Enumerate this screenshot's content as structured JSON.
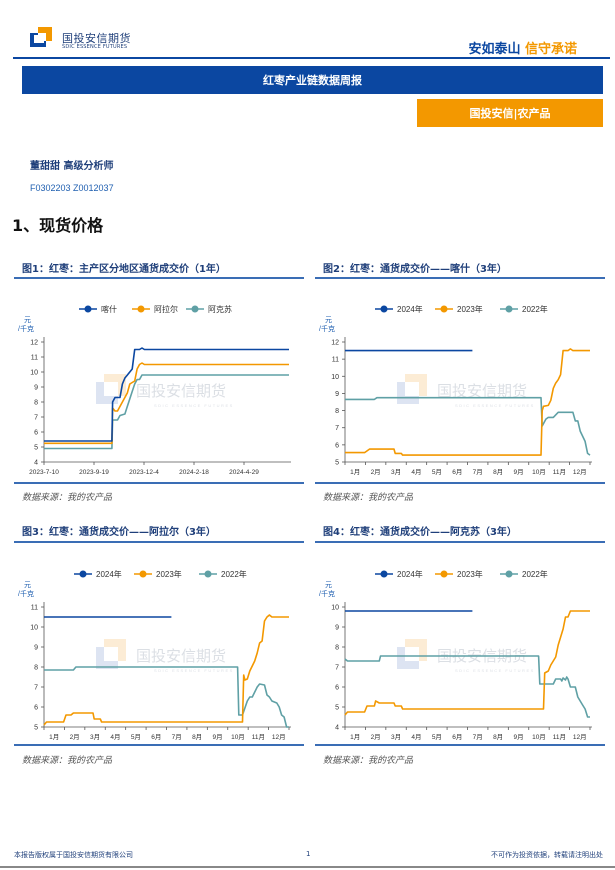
{
  "header": {
    "logo_cn": "国投安信期货",
    "logo_en": "SDIC ESSENCE FUTURES",
    "slogan_a": "安如泰山",
    "slogan_b": "信守承诺",
    "colors": {
      "brand_blue": "#0b47a1",
      "brand_orange": "#f39800"
    }
  },
  "report": {
    "title": "红枣产业链数据周报",
    "tag": "国投安信|农产品",
    "analyst": "董甜甜 高级分析师",
    "cert": "F0302203 Z0012037",
    "section": "1、现货价格"
  },
  "watermark": {
    "cn": "国投安信期货",
    "en": "SDIC ESSENCE FUTURES"
  },
  "figures": [
    {
      "title": "图1：红枣：主产区分地区通货成交价（1年）",
      "source": "数据来源：我的农产品"
    },
    {
      "title": "图2：红枣：通货成交价——喀什（3年）",
      "source": "数据来源：我的农产品"
    },
    {
      "title": "图3：红枣：通货成交价——阿拉尔（3年）",
      "source": "数据来源：我的农产品"
    },
    {
      "title": "图4：红枣：通货成交价——阿克苏（3年）",
      "source": "数据来源：我的农产品"
    }
  ],
  "footer": {
    "left": "本报告版权属于国投安信期货有限公司",
    "page": "1",
    "right": "不可作为投资依据，转载请注明出处"
  },
  "chart_data": [
    {
      "type": "line",
      "title": "图1：红枣：主产区分地区通货成交价（1年）",
      "ylabel": "元/千克",
      "ylim": [
        4,
        12
      ],
      "yticks": [
        4,
        5,
        6,
        7,
        8,
        9,
        10,
        11,
        12
      ],
      "xticks": [
        "2023-7-10",
        "2023-9-19",
        "2023-12-4",
        "2024-2-18",
        "2024-4-29"
      ],
      "legend_position": "top",
      "series": [
        {
          "name": "喀什",
          "color": "#0b47a1",
          "points": [
            [
              0,
              5.4
            ],
            [
              0.277,
              5.4
            ],
            [
              0.28,
              8.0
            ],
            [
              0.29,
              8.3
            ],
            [
              0.31,
              8.3
            ],
            [
              0.32,
              9.2
            ],
            [
              0.33,
              9.6
            ],
            [
              0.35,
              10.0
            ],
            [
              0.36,
              10.2
            ],
            [
              0.37,
              11.5
            ],
            [
              0.39,
              11.5
            ],
            [
              0.4,
              11.6
            ],
            [
              0.41,
              11.5
            ],
            [
              1,
              11.5
            ]
          ]
        },
        {
          "name": "阿拉尔",
          "color": "#f39800",
          "points": [
            [
              0,
              5.25
            ],
            [
              0.277,
              5.25
            ],
            [
              0.28,
              7.6
            ],
            [
              0.29,
              7.4
            ],
            [
              0.3,
              7.4
            ],
            [
              0.32,
              8.0
            ],
            [
              0.34,
              8.6
            ],
            [
              0.35,
              9.2
            ],
            [
              0.37,
              9.4
            ],
            [
              0.38,
              10.2
            ],
            [
              0.39,
              10.5
            ],
            [
              0.4,
              10.6
            ],
            [
              0.41,
              10.5
            ],
            [
              1,
              10.5
            ]
          ]
        },
        {
          "name": "阿克苏",
          "color": "#5fa0a5",
          "points": [
            [
              0,
              4.9
            ],
            [
              0.277,
              4.9
            ],
            [
              0.28,
              6.8
            ],
            [
              0.3,
              6.8
            ],
            [
              0.31,
              7.1
            ],
            [
              0.33,
              7.2
            ],
            [
              0.34,
              7.7
            ],
            [
              0.36,
              8.7
            ],
            [
              0.37,
              9.2
            ],
            [
              0.38,
              9.5
            ],
            [
              0.39,
              9.5
            ],
            [
              0.4,
              9.8
            ],
            [
              1,
              9.8
            ]
          ]
        }
      ]
    },
    {
      "type": "line",
      "title": "图2：红枣：通货成交价——喀什（3年）",
      "ylabel": "元/千克",
      "ylim": [
        5,
        12
      ],
      "yticks": [
        5,
        6,
        7,
        8,
        9,
        10,
        11,
        12
      ],
      "xticks": [
        "1月",
        "2月",
        "3月",
        "4月",
        "5月",
        "6月",
        "7月",
        "8月",
        "9月",
        "10月",
        "11月",
        "12月"
      ],
      "legend_position": "top",
      "series": [
        {
          "name": "2024年",
          "color": "#0b47a1",
          "points": [
            [
              0,
              11.5
            ],
            [
              0.52,
              11.5
            ]
          ]
        },
        {
          "name": "2023年",
          "color": "#f39800",
          "points": [
            [
              0,
              5.55
            ],
            [
              0.08,
              5.55
            ],
            [
              0.1,
              5.75
            ],
            [
              0.2,
              5.75
            ],
            [
              0.205,
              5.5
            ],
            [
              0.23,
              5.5
            ],
            [
              0.235,
              5.4
            ],
            [
              0.8,
              5.4
            ],
            [
              0.805,
              8.0
            ],
            [
              0.81,
              8.25
            ],
            [
              0.83,
              8.3
            ],
            [
              0.84,
              8.6
            ],
            [
              0.85,
              9.3
            ],
            [
              0.86,
              9.6
            ],
            [
              0.87,
              9.8
            ],
            [
              0.88,
              10.1
            ],
            [
              0.89,
              11.5
            ],
            [
              0.91,
              11.5
            ],
            [
              0.92,
              11.6
            ],
            [
              0.93,
              11.5
            ],
            [
              1,
              11.5
            ]
          ]
        },
        {
          "name": "2022年",
          "color": "#5fa0a5",
          "points": [
            [
              0,
              8.65
            ],
            [
              0.12,
              8.65
            ],
            [
              0.13,
              8.75
            ],
            [
              0.8,
              8.75
            ],
            [
              0.805,
              7.1
            ],
            [
              0.82,
              7.5
            ],
            [
              0.83,
              7.6
            ],
            [
              0.85,
              7.6
            ],
            [
              0.87,
              7.9
            ],
            [
              0.93,
              7.9
            ],
            [
              0.94,
              7.4
            ],
            [
              0.95,
              7.4
            ],
            [
              0.96,
              6.8
            ],
            [
              0.98,
              6.2
            ],
            [
              0.99,
              5.5
            ],
            [
              1,
              5.4
            ]
          ]
        }
      ]
    },
    {
      "type": "line",
      "title": "图3：红枣：通货成交价——阿拉尔（3年）",
      "ylabel": "元/千克",
      "ylim": [
        5,
        11
      ],
      "yticks": [
        5,
        6,
        7,
        8,
        9,
        10,
        11
      ],
      "xticks": [
        "1月",
        "2月",
        "3月",
        "4月",
        "5月",
        "6月",
        "7月",
        "8月",
        "9月",
        "10月",
        "11月",
        "12月"
      ],
      "legend_position": "top",
      "series": [
        {
          "name": "2024年",
          "color": "#0b47a1",
          "points": [
            [
              0,
              10.5
            ],
            [
              0.52,
              10.5
            ]
          ]
        },
        {
          "name": "2023年",
          "color": "#f39800",
          "points": [
            [
              0,
              5.1
            ],
            [
              0.01,
              5.25
            ],
            [
              0.08,
              5.25
            ],
            [
              0.09,
              5.6
            ],
            [
              0.11,
              5.6
            ],
            [
              0.12,
              5.7
            ],
            [
              0.2,
              5.7
            ],
            [
              0.205,
              5.4
            ],
            [
              0.23,
              5.4
            ],
            [
              0.235,
              5.25
            ],
            [
              0.81,
              5.25
            ],
            [
              0.815,
              7.6
            ],
            [
              0.82,
              7.35
            ],
            [
              0.83,
              7.4
            ],
            [
              0.84,
              7.8
            ],
            [
              0.86,
              8.3
            ],
            [
              0.87,
              8.7
            ],
            [
              0.88,
              9.2
            ],
            [
              0.89,
              9.3
            ],
            [
              0.9,
              10.3
            ],
            [
              0.91,
              10.5
            ],
            [
              0.92,
              10.6
            ],
            [
              0.93,
              10.5
            ],
            [
              1,
              10.5
            ]
          ]
        },
        {
          "name": "2022年",
          "color": "#5fa0a5",
          "points": [
            [
              0,
              7.85
            ],
            [
              0.12,
              7.85
            ],
            [
              0.13,
              8.0
            ],
            [
              0.79,
              8.0
            ],
            [
              0.795,
              5.6
            ],
            [
              0.81,
              5.6
            ],
            [
              0.83,
              6.3
            ],
            [
              0.84,
              6.5
            ],
            [
              0.85,
              6.5
            ],
            [
              0.87,
              7.0
            ],
            [
              0.88,
              7.15
            ],
            [
              0.9,
              7.1
            ],
            [
              0.91,
              6.6
            ],
            [
              0.92,
              6.5
            ],
            [
              0.93,
              6.3
            ],
            [
              0.95,
              6.2
            ],
            [
              0.96,
              6.0
            ],
            [
              0.97,
              5.6
            ],
            [
              0.98,
              5.5
            ],
            [
              0.99,
              5.0
            ],
            [
              1,
              5.0
            ]
          ]
        }
      ]
    },
    {
      "type": "line",
      "title": "图4：红枣：通货成交价——阿克苏（3年）",
      "ylabel": "元/千克",
      "ylim": [
        4,
        10
      ],
      "yticks": [
        4,
        5,
        6,
        7,
        8,
        9,
        10
      ],
      "xticks": [
        "1月",
        "2月",
        "3月",
        "4月",
        "5月",
        "6月",
        "7月",
        "8月",
        "9月",
        "10月",
        "11月",
        "12月"
      ],
      "legend_position": "top",
      "series": [
        {
          "name": "2024年",
          "color": "#0b47a1",
          "points": [
            [
              0,
              9.8
            ],
            [
              0.52,
              9.8
            ]
          ]
        },
        {
          "name": "2023年",
          "color": "#f39800",
          "points": [
            [
              0,
              4.6
            ],
            [
              0.01,
              4.75
            ],
            [
              0.08,
              4.75
            ],
            [
              0.09,
              5.05
            ],
            [
              0.12,
              5.05
            ],
            [
              0.125,
              5.3
            ],
            [
              0.14,
              5.2
            ],
            [
              0.2,
              5.2
            ],
            [
              0.205,
              5.05
            ],
            [
              0.23,
              5.05
            ],
            [
              0.235,
              4.9
            ],
            [
              0.81,
              4.9
            ],
            [
              0.815,
              6.7
            ],
            [
              0.83,
              6.8
            ],
            [
              0.84,
              7.1
            ],
            [
              0.86,
              7.5
            ],
            [
              0.87,
              8.1
            ],
            [
              0.89,
              8.9
            ],
            [
              0.9,
              9.5
            ],
            [
              0.91,
              9.5
            ],
            [
              0.92,
              9.8
            ],
            [
              1,
              9.8
            ]
          ]
        },
        {
          "name": "2022年",
          "color": "#5fa0a5",
          "points": [
            [
              0,
              7.4
            ],
            [
              0.01,
              7.3
            ],
            [
              0.14,
              7.3
            ],
            [
              0.145,
              7.55
            ],
            [
              0.79,
              7.55
            ],
            [
              0.795,
              6.15
            ],
            [
              0.85,
              6.15
            ],
            [
              0.86,
              6.4
            ],
            [
              0.88,
              6.4
            ],
            [
              0.885,
              6.3
            ],
            [
              0.89,
              6.45
            ],
            [
              0.9,
              6.35
            ],
            [
              0.905,
              6.5
            ],
            [
              0.91,
              6.4
            ],
            [
              0.92,
              6.0
            ],
            [
              0.94,
              6.0
            ],
            [
              0.95,
              5.5
            ],
            [
              0.96,
              5.3
            ],
            [
              0.97,
              5.1
            ],
            [
              0.98,
              4.9
            ],
            [
              0.99,
              4.5
            ],
            [
              1,
              4.5
            ]
          ]
        }
      ]
    }
  ]
}
